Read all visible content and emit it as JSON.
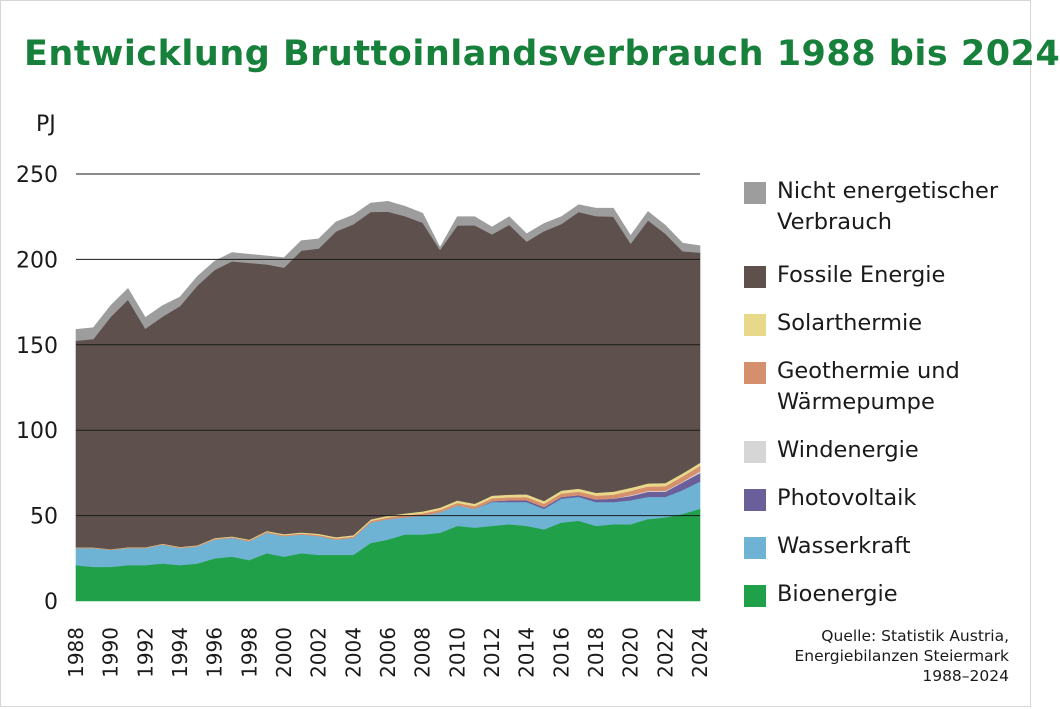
{
  "colors": {
    "title": "#17803a",
    "Bioenergie": "#21a04a",
    "Wasserkraft": "#6fb3d4",
    "Photovoltaik": "#6b5f9a",
    "Windenergie": "#d6d6d6",
    "Geothermie": "#d58f6c",
    "Solarthermie": "#e8d98a",
    "Fossile": "#5e514d",
    "Nicht": "#9d9d9d"
  },
  "chart_data": {
    "type": "area",
    "stacked": true,
    "title": "Entwicklung Bruttoinlandsverbrauch 1988 bis 2024",
    "ylabel": "PJ",
    "ylim": [
      0,
      250
    ],
    "yticks": [
      0,
      50,
      100,
      150,
      200,
      250
    ],
    "xticks": [
      1988,
      1990,
      1992,
      1994,
      1996,
      1998,
      2000,
      2002,
      2004,
      2006,
      2008,
      2010,
      2012,
      2014,
      2016,
      2018,
      2020,
      2022,
      2024
    ],
    "grid": "horizontal",
    "legend": "right",
    "x": [
      1988,
      1989,
      1990,
      1991,
      1992,
      1993,
      1994,
      1995,
      1996,
      1997,
      1998,
      1999,
      2000,
      2001,
      2002,
      2003,
      2004,
      2005,
      2006,
      2007,
      2008,
      2009,
      2010,
      2011,
      2012,
      2013,
      2014,
      2015,
      2016,
      2017,
      2018,
      2019,
      2020,
      2021,
      2022,
      2023,
      2024
    ],
    "series": [
      {
        "name": "Bioenergie",
        "values": [
          21,
          20,
          20,
          21,
          21,
          22,
          21,
          22,
          25,
          26,
          24,
          28,
          26,
          28,
          27,
          27,
          27,
          34,
          36,
          39,
          39,
          40,
          44,
          43,
          44,
          45,
          44,
          42,
          46,
          47,
          44,
          45,
          45,
          48,
          49,
          51,
          54
        ]
      },
      {
        "name": "Wasserkraft",
        "values": [
          10,
          11,
          10,
          10,
          10,
          11,
          10,
          10,
          11,
          11,
          11,
          12,
          12,
          11,
          11,
          9,
          10,
          12,
          12,
          10,
          11,
          12,
          12,
          11,
          14,
          13,
          14,
          12,
          14,
          14,
          14,
          13,
          14,
          13,
          12,
          14,
          16
        ]
      },
      {
        "name": "Photovoltaik",
        "values": [
          0,
          0,
          0,
          0,
          0,
          0,
          0,
          0,
          0,
          0,
          0,
          0,
          0,
          0,
          0,
          0,
          0,
          0,
          0,
          0,
          0,
          0,
          0,
          0,
          0.5,
          1,
          1,
          1,
          1,
          1,
          1.5,
          2,
          2.5,
          3,
          3,
          4.5,
          5
        ]
      },
      {
        "name": "Windenergie",
        "values": [
          0,
          0,
          0,
          0,
          0,
          0,
          0,
          0,
          0,
          0,
          0,
          0,
          0,
          0,
          0,
          0,
          0,
          0,
          0,
          0,
          0,
          0,
          0,
          0,
          0,
          0,
          0,
          0,
          0,
          0,
          0,
          0,
          0.5,
          0.5,
          0.5,
          0.5,
          1
        ]
      },
      {
        "name": "Geothermie und Wärmepumpe",
        "values": [
          0.3,
          0.3,
          0.3,
          0.3,
          0.3,
          0.4,
          0.4,
          0.4,
          0.5,
          0.5,
          0.5,
          0.6,
          0.6,
          0.6,
          0.7,
          0.7,
          0.8,
          0.9,
          1,
          1.2,
          1.3,
          1.4,
          1.5,
          1.6,
          1.7,
          1.8,
          1.9,
          2,
          2,
          2.1,
          2.2,
          2.3,
          2.5,
          2.6,
          2.8,
          3,
          3.2
        ]
      },
      {
        "name": "Solarthermie",
        "values": [
          0.1,
          0.1,
          0.1,
          0.2,
          0.2,
          0.2,
          0.3,
          0.3,
          0.4,
          0.4,
          0.5,
          0.5,
          0.6,
          0.6,
          0.7,
          0.7,
          0.8,
          0.9,
          1,
          1.1,
          1.2,
          1.3,
          1.4,
          1.4,
          1.5,
          1.5,
          1.6,
          1.6,
          1.7,
          1.7,
          1.7,
          1.8,
          1.8,
          1.8,
          1.8,
          1.8,
          1.8
        ]
      },
      {
        "name": "Fossile Energie",
        "values": [
          121,
          122,
          136,
          145,
          128,
          133,
          141,
          152,
          157,
          161,
          162,
          156,
          156,
          165,
          167,
          179,
          182,
          180,
          178,
          174,
          169,
          151,
          161,
          163,
          153,
          158,
          148,
          158,
          156,
          162,
          162,
          161,
          143,
          154,
          146,
          130,
          123
        ]
      },
      {
        "name": "Nicht energetischer Verbrauch",
        "values": [
          6.6,
          6.6,
          6.6,
          6.5,
          6.5,
          6.4,
          5.3,
          5.3,
          5.1,
          5.1,
          5.0,
          4.9,
          5.8,
          5.8,
          5.6,
          5.6,
          5.4,
          5.2,
          6.0,
          5.7,
          5.5,
          1.3,
          5.1,
          5.0,
          4.3,
          4.7,
          4.5,
          4.4,
          4.3,
          4.2,
          4.6,
          4.9,
          4.7,
          5.1,
          4.9,
          4.7,
          4.0
        ]
      }
    ]
  },
  "legend": [
    {
      "key": "Nicht",
      "label": "Nicht energetischer Verbrauch"
    },
    {
      "key": "Fossile",
      "label": "Fossile Energie"
    },
    {
      "key": "Solarthermie",
      "label": "Solarthermie"
    },
    {
      "key": "Geothermie",
      "label": "Geothermie und Wärmepumpe"
    },
    {
      "key": "Windenergie",
      "label": "Windenergie"
    },
    {
      "key": "Photovoltaik",
      "label": "Photovoltaik"
    },
    {
      "key": "Wasserkraft",
      "label": "Wasserkraft"
    },
    {
      "key": "Bioenergie",
      "label": "Bioenergie"
    }
  ],
  "source": "Quelle: Statistik Austria,\nEnergiebilanzen Steiermark\n1988–2024"
}
